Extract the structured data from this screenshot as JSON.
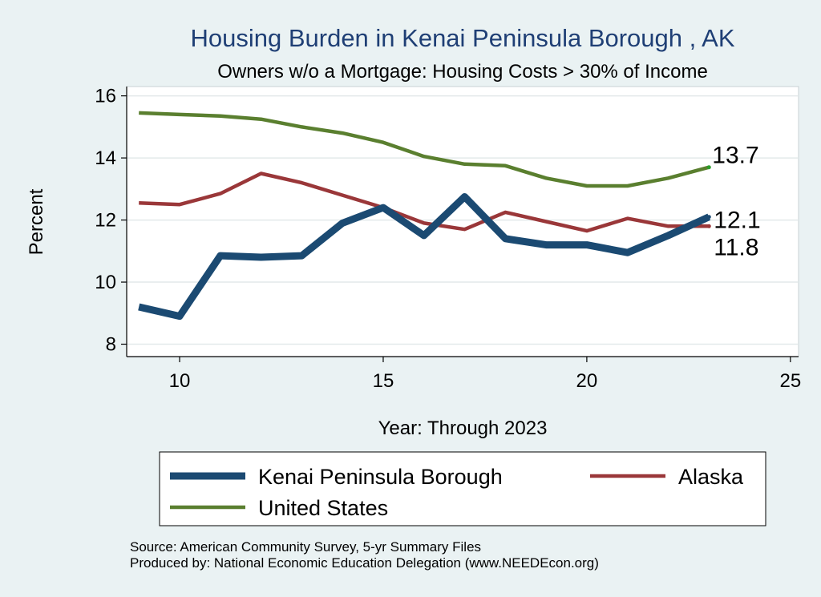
{
  "chart_data": {
    "type": "line",
    "title": "Housing Burden in Kenai Peninsula Borough , AK",
    "subtitle": "Owners w/o a Mortgage: Housing Costs > 30% of Income",
    "xlabel": "Year: Through 2023",
    "ylabel": "Percent",
    "xlim": [
      8.7,
      25.2
    ],
    "ylim": [
      7.6,
      16.3
    ],
    "xticks": [
      10,
      15,
      20,
      25
    ],
    "yticks": [
      8,
      10,
      12,
      14,
      16
    ],
    "grid": true,
    "legend_position": "bottom",
    "x": [
      9,
      10,
      11,
      12,
      13,
      14,
      15,
      16,
      17,
      18,
      19,
      20,
      21,
      22,
      23
    ],
    "series": [
      {
        "name": "Kenai Peninsula Borough",
        "color": "#1b4a72",
        "values": [
          9.2,
          8.9,
          10.85,
          10.8,
          10.85,
          11.9,
          12.4,
          11.5,
          12.75,
          11.4,
          11.2,
          11.2,
          10.95,
          11.5,
          12.1
        ],
        "end_label": "12.1"
      },
      {
        "name": "Alaska",
        "color": "#9a3739",
        "values": [
          12.55,
          12.5,
          12.85,
          13.5,
          13.2,
          12.8,
          12.4,
          11.9,
          11.7,
          12.25,
          11.95,
          11.65,
          12.05,
          11.8,
          11.8
        ],
        "end_label": "11.8"
      },
      {
        "name": "United States",
        "color": "#5a7f2f",
        "values": [
          15.45,
          15.4,
          15.35,
          15.25,
          15.0,
          14.8,
          14.5,
          14.05,
          13.8,
          13.75,
          13.35,
          13.1,
          13.1,
          13.35,
          13.7
        ],
        "end_label": "13.7"
      }
    ]
  },
  "source_note": "Source: American Community Survey, 5-yr Summary Files",
  "produced_note": "Produced by: National Economic Education Delegation (www.NEEDEcon.org)"
}
